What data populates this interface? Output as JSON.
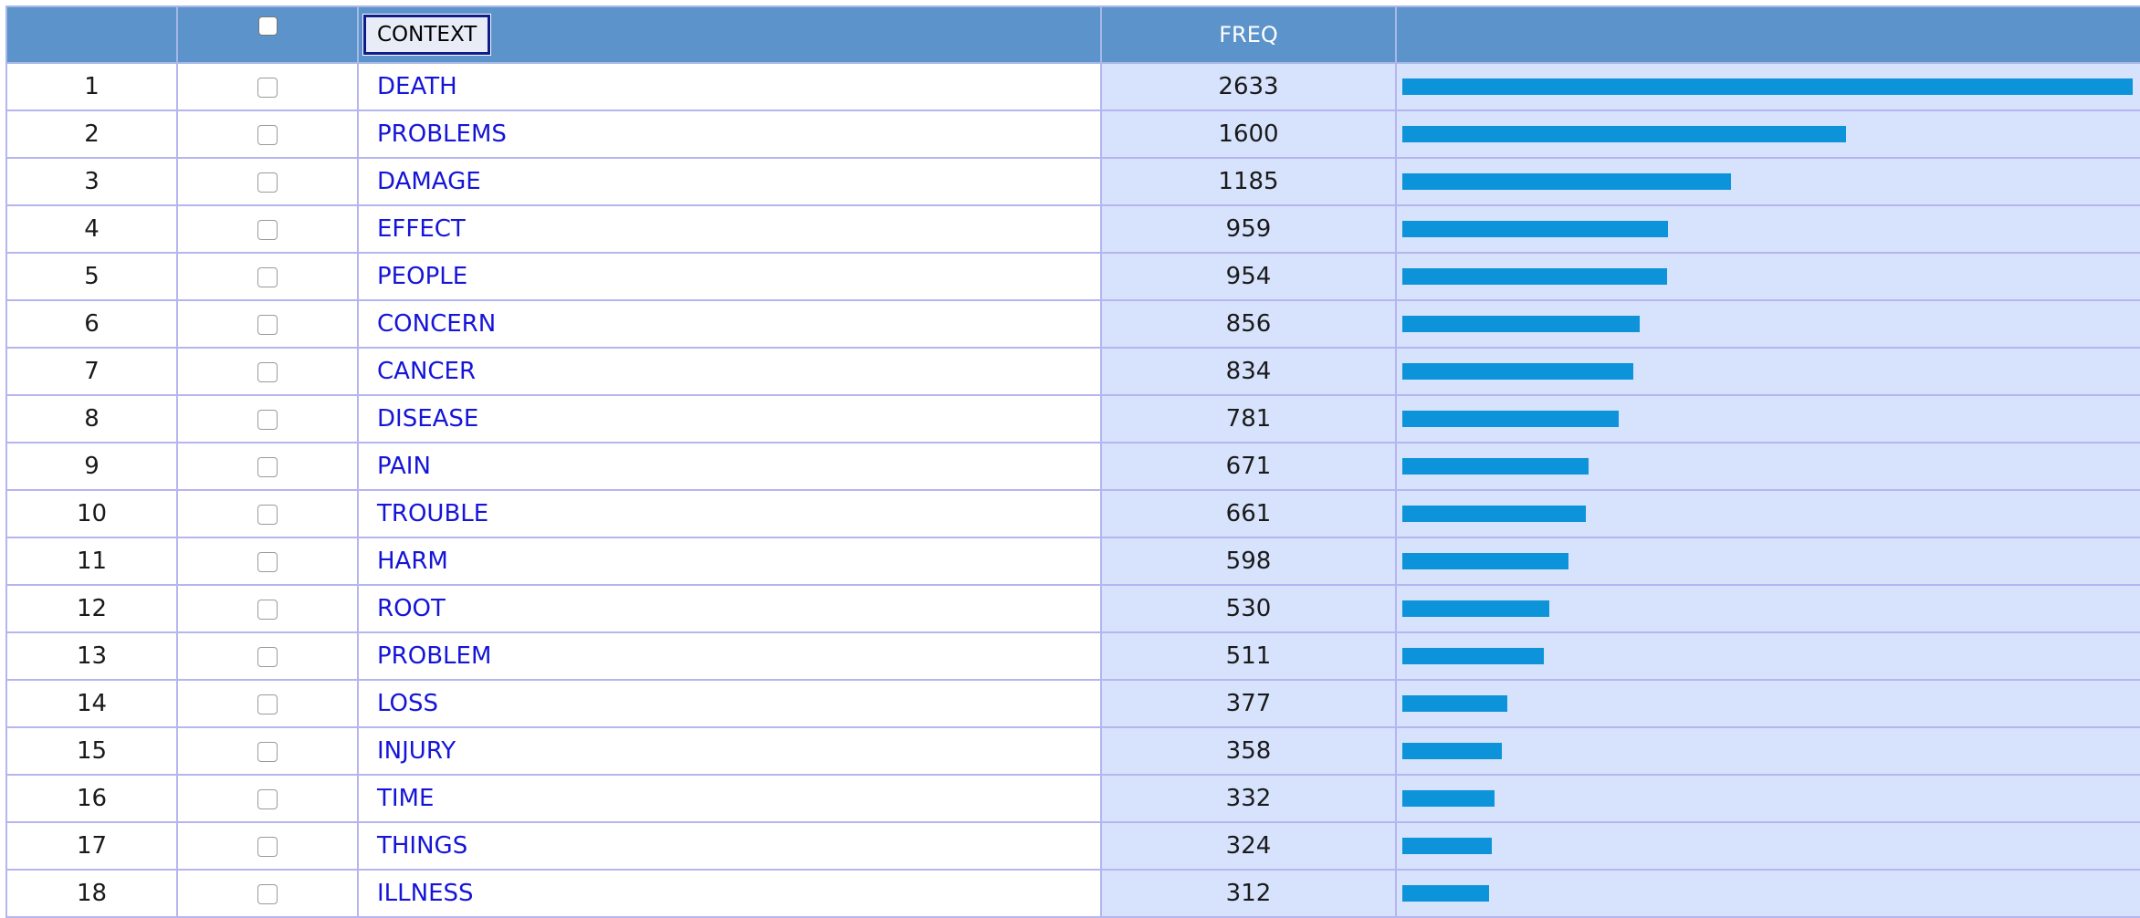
{
  "header": {
    "context_button": "CONTEXT",
    "freq_label": "FREQ"
  },
  "colors": {
    "header_bg": "#5b93ca",
    "freq_col_bg": "#d7e3fc",
    "bar": "#0d93d9",
    "link": "#1515d8",
    "border": "#b5b5f0"
  },
  "max_freq": 2633,
  "rows": [
    {
      "rank": "1",
      "word": "DEATH",
      "freq": "2633",
      "value": 2633
    },
    {
      "rank": "2",
      "word": "PROBLEMS",
      "freq": "1600",
      "value": 1600
    },
    {
      "rank": "3",
      "word": "DAMAGE",
      "freq": "1185",
      "value": 1185
    },
    {
      "rank": "4",
      "word": "EFFECT",
      "freq": "959",
      "value": 959
    },
    {
      "rank": "5",
      "word": "PEOPLE",
      "freq": "954",
      "value": 954
    },
    {
      "rank": "6",
      "word": "CONCERN",
      "freq": "856",
      "value": 856
    },
    {
      "rank": "7",
      "word": "CANCER",
      "freq": "834",
      "value": 834
    },
    {
      "rank": "8",
      "word": "DISEASE",
      "freq": "781",
      "value": 781
    },
    {
      "rank": "9",
      "word": "PAIN",
      "freq": "671",
      "value": 671
    },
    {
      "rank": "10",
      "word": "TROUBLE",
      "freq": "661",
      "value": 661
    },
    {
      "rank": "11",
      "word": "HARM",
      "freq": "598",
      "value": 598
    },
    {
      "rank": "12",
      "word": "ROOT",
      "freq": "530",
      "value": 530
    },
    {
      "rank": "13",
      "word": "PROBLEM",
      "freq": "511",
      "value": 511
    },
    {
      "rank": "14",
      "word": "LOSS",
      "freq": "377",
      "value": 377
    },
    {
      "rank": "15",
      "word": "INJURY",
      "freq": "358",
      "value": 358
    },
    {
      "rank": "16",
      "word": "TIME",
      "freq": "332",
      "value": 332
    },
    {
      "rank": "17",
      "word": "THINGS",
      "freq": "324",
      "value": 324
    },
    {
      "rank": "18",
      "word": "ILLNESS",
      "freq": "312",
      "value": 312
    }
  ]
}
